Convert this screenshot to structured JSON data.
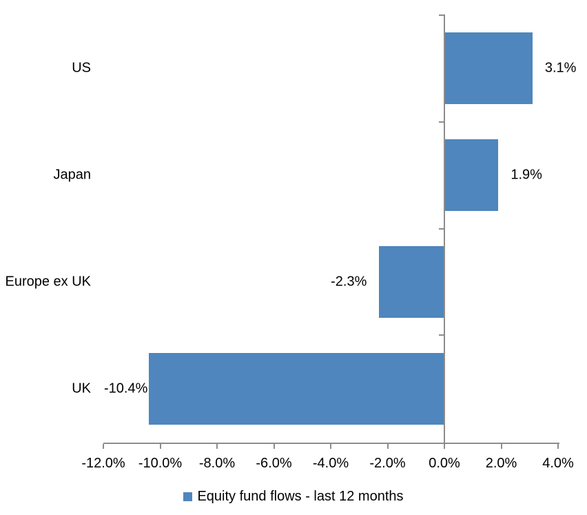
{
  "chart_data": {
    "type": "bar",
    "orientation": "horizontal",
    "series_name": "Equity fund flows - last 12 months",
    "categories": [
      "US",
      "Japan",
      "Europe ex UK",
      "UK"
    ],
    "values": [
      3.1,
      1.9,
      -2.3,
      -10.4
    ],
    "data_labels": [
      "3.1%",
      "1.9%",
      "-2.3%",
      "-10.4%"
    ],
    "x_tick_values": [
      -12,
      -10,
      -8,
      -6,
      -4,
      -2,
      0,
      2,
      4
    ],
    "x_tick_labels": [
      "-12.0%",
      "-10.0%",
      "-8.0%",
      "-6.0%",
      "-4.0%",
      "-2.0%",
      "0.0%",
      "2.0%",
      "4.0%"
    ],
    "xlim": [
      -12,
      4
    ],
    "grid": false,
    "legend_position": "bottom-center",
    "bar_color": "#4E86BD",
    "axis_color": "#8C8C8C",
    "text_color": "#000000"
  }
}
